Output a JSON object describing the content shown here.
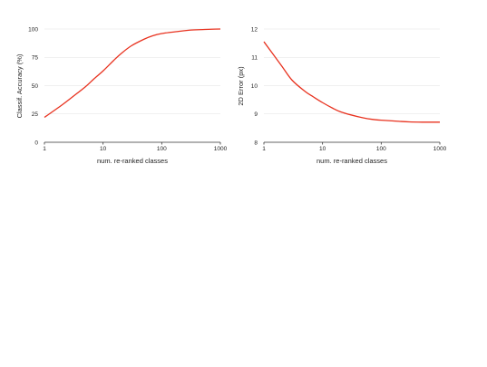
{
  "chart_data": [
    {
      "type": "line",
      "xscale": "log",
      "xlabel": "num. re-ranked classes",
      "ylabel": "Classif. Accuracy (%)",
      "xlim": [
        1,
        1000
      ],
      "ylim": [
        0,
        100
      ],
      "xticks": [
        1,
        10,
        100,
        1000
      ],
      "yticks": [
        0,
        25,
        50,
        75,
        100
      ],
      "grid": "horizontal",
      "color": "#e8321f",
      "x": [
        1,
        2,
        3,
        5,
        7,
        10,
        15,
        20,
        30,
        50,
        70,
        100,
        200,
        300,
        500,
        700,
        1000
      ],
      "y": [
        22,
        33,
        40,
        49,
        56,
        63,
        72,
        78,
        85,
        91,
        94,
        96,
        98,
        99,
        99.5,
        99.8,
        100
      ]
    },
    {
      "type": "line",
      "xscale": "log",
      "xlabel": "num. re-ranked classes",
      "ylabel": "2D Error (px)",
      "xlim": [
        1,
        1000
      ],
      "ylim": [
        8,
        12
      ],
      "xticks": [
        1,
        10,
        100,
        1000
      ],
      "yticks": [
        8,
        9,
        10,
        11,
        12
      ],
      "grid": "horizontal",
      "color": "#e8321f",
      "x": [
        1,
        2,
        3,
        5,
        7,
        10,
        15,
        20,
        30,
        50,
        70,
        100,
        200,
        300,
        500,
        700,
        1000
      ],
      "y": [
        11.55,
        10.7,
        10.2,
        9.8,
        9.6,
        9.4,
        9.2,
        9.08,
        8.97,
        8.86,
        8.81,
        8.78,
        8.74,
        8.72,
        8.71,
        8.71,
        8.71
      ]
    }
  ]
}
